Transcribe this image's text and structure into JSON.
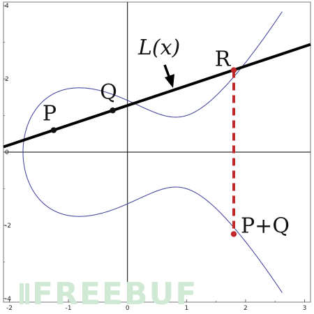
{
  "chart_data": {
    "type": "line",
    "title": "",
    "xlabel": "",
    "ylabel": "",
    "xlim": [
      -2.1,
      3.1
    ],
    "ylim": [
      -4.1,
      4.1
    ],
    "grid": false,
    "x_ticks": [
      -2,
      -1,
      0,
      1,
      2,
      3
    ],
    "y_ticks": [
      -4,
      -2,
      0,
      2,
      4
    ],
    "curve": {
      "equation": "y^2 = x^3 - 2x + 2",
      "a": -2,
      "b": 2,
      "color": "#4a4aa0"
    },
    "line": {
      "slope": 0.5385,
      "intercept": 1.2746,
      "x_range": [
        -2.1,
        3.1
      ],
      "color": "#000000"
    },
    "points": [
      {
        "label": "P",
        "x": -1.25,
        "y": 0.6
      },
      {
        "label": "Q",
        "x": -0.25,
        "y": 1.14
      },
      {
        "label": "R",
        "x": 1.8,
        "y": 2.24
      },
      {
        "label": "P+Q",
        "x": 1.8,
        "y": -2.24
      }
    ],
    "line_label": "L(x)",
    "reflection": {
      "x": 1.8,
      "y_from": 2.24,
      "y_to": -2.24,
      "color": "#c0282a",
      "style": "dashed"
    },
    "colors": {
      "point_black": "#111111",
      "point_red": "#c0282a"
    }
  },
  "watermark": {
    "text": "FREEBUF",
    "icon": "freebuf-logo-icon"
  }
}
